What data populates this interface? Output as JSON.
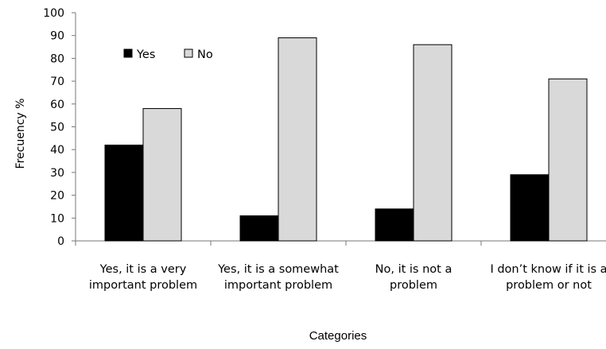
{
  "chart_data": {
    "type": "bar",
    "categories": [
      [
        "Yes, it is a very",
        "important problem"
      ],
      [
        "Yes, it is a somewhat",
        "important problem"
      ],
      [
        "No, it is not a",
        "problem"
      ],
      [
        "I don’t know if it is a",
        "problem or not"
      ]
    ],
    "series": [
      {
        "name": "Yes",
        "values": [
          42,
          11,
          14,
          29
        ],
        "color": "#000000"
      },
      {
        "name": "No",
        "values": [
          58,
          89,
          86,
          71
        ],
        "color": "#d9d9d9"
      }
    ],
    "title": "",
    "xlabel": "Categories",
    "ylabel": "Frecuency  %",
    "ylim": [
      0,
      100
    ],
    "yticks": [
      0,
      10,
      20,
      30,
      40,
      50,
      60,
      70,
      80,
      90,
      100
    ],
    "grid": false,
    "legend": "top-left"
  }
}
